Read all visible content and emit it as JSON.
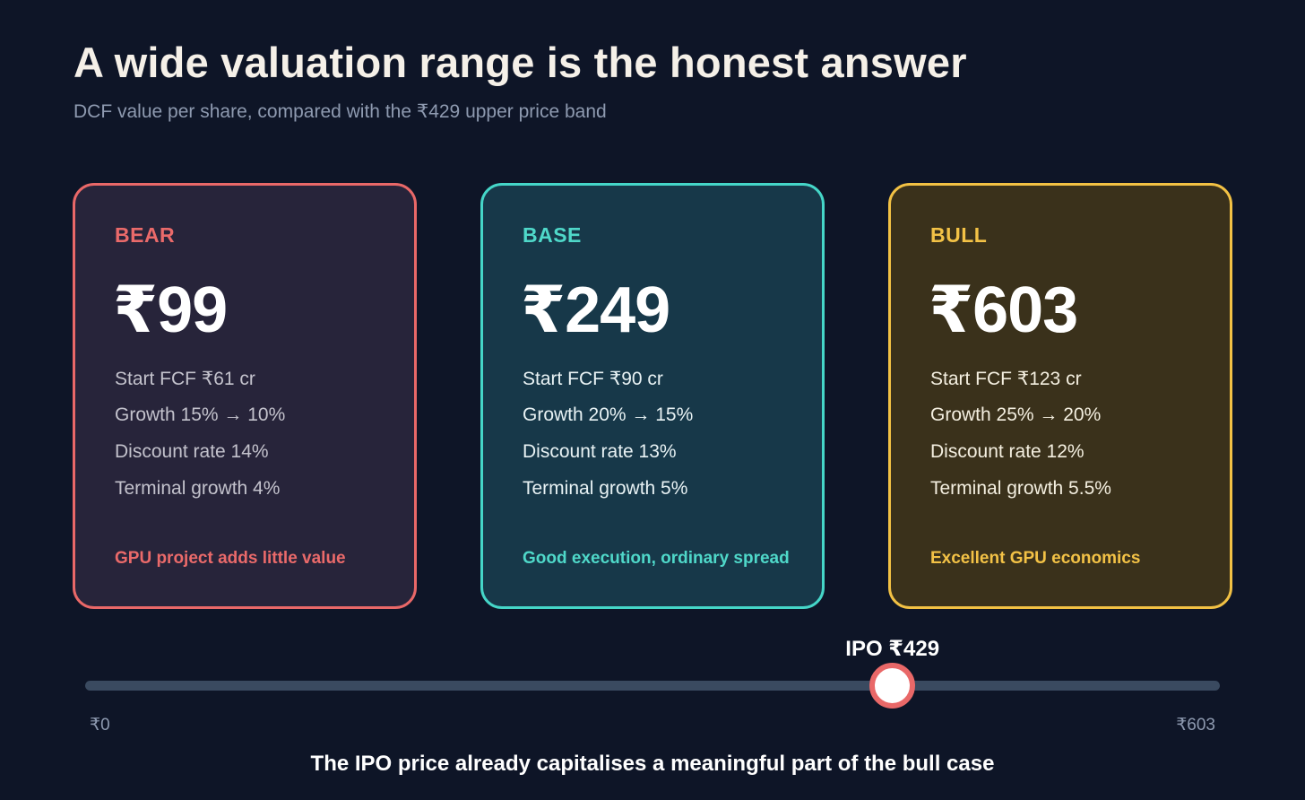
{
  "header": {
    "title": "A wide valuation range is the honest answer",
    "subtitle": "DCF value per share, compared with the ₹429 upper price band"
  },
  "scenarios": [
    {
      "label": "BEAR",
      "value": "₹99",
      "params": [
        "Start FCF ₹61 cr",
        "Growth 15% → 10%",
        "Discount rate 14%",
        "Terminal growth 4%"
      ],
      "note": "GPU project adds little value",
      "accent": "#e96868"
    },
    {
      "label": "BASE",
      "value": "₹249",
      "params": [
        "Start FCF ₹90 cr",
        "Growth 20% → 15%",
        "Discount rate 13%",
        "Terminal growth 5%"
      ],
      "note": "Good execution, ordinary spread",
      "accent": "#45d6c8"
    },
    {
      "label": "BULL",
      "value": "₹603",
      "params": [
        "Start FCF ₹123 cr",
        "Growth 25% → 20%",
        "Discount rate 12%",
        "Terminal growth 5.5%"
      ],
      "note": "Excellent GPU economics",
      "accent": "#f2c144"
    }
  ],
  "scale": {
    "min_label": "₹0",
    "max_label": "₹603",
    "min": 0,
    "max": 603,
    "marker_value": 429,
    "marker_label": "IPO ₹429"
  },
  "conclusion": "The IPO price already capitalises a meaningful part of the bull case"
}
